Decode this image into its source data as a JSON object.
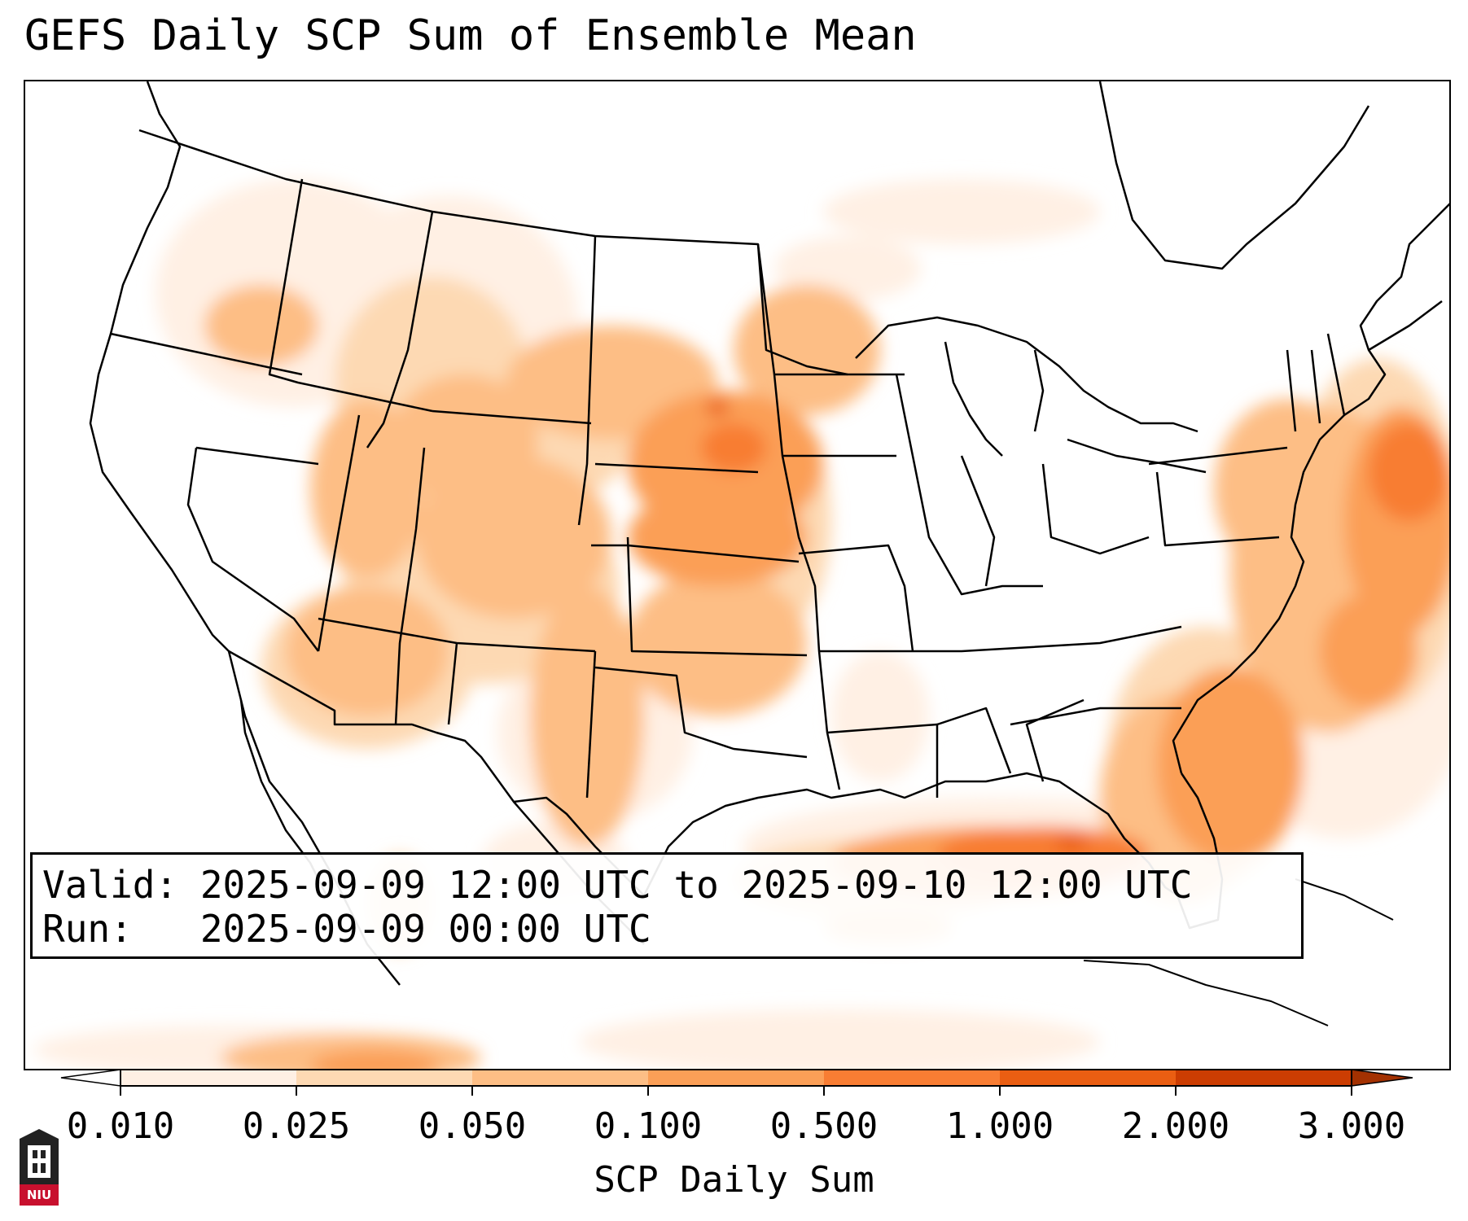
{
  "title": "GEFS Daily SCP Sum of Ensemble Mean",
  "info": {
    "valid_line": "Valid: 2025-09-09 12:00 UTC to 2025-09-10 12:00 UTC",
    "run_line": "Run:   2025-09-09 00:00 UTC"
  },
  "colorbar": {
    "label": "SCP Daily Sum",
    "ticks": [
      "0.010",
      "0.025",
      "0.050",
      "0.100",
      "0.500",
      "1.000",
      "2.000",
      "3.000"
    ],
    "colors": [
      "#fff0e4",
      "#fdd9b3",
      "#fdbe85",
      "#fb9f57",
      "#f87d33",
      "#ea5e12",
      "#cc3d02"
    ],
    "under_color": "#ffffff",
    "over_color": "#a33101"
  },
  "logo": {
    "text": "NIU"
  },
  "map_fields": {
    "regions": [
      {
        "name": "Gulf of Mexico",
        "level": 5
      },
      {
        "name": "Western Atlantic",
        "level": 4
      },
      {
        "name": "Nebraska / Kansas",
        "level": 4
      },
      {
        "name": "Great Plains",
        "level": 3
      },
      {
        "name": "Four Corners",
        "level": 2
      },
      {
        "name": "Pacific Northwest",
        "level": 2
      }
    ]
  }
}
